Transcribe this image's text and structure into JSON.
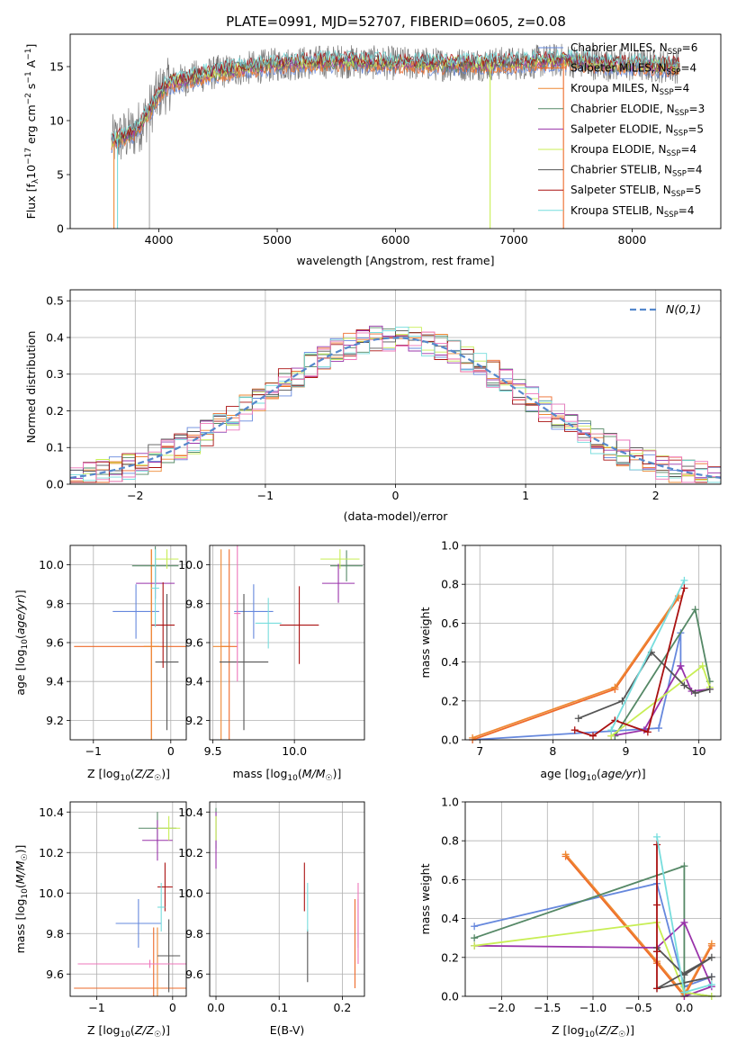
{
  "figure_title": "PLATE=0991, MJD=52707, FIBERID=0605, z=0.08",
  "colors": {
    "chabrier_miles": "#6688dd",
    "salpeter_miles": "#ee6a2a",
    "kroupa_miles": "#ee8833",
    "chabrier_elodie": "#558866",
    "salpeter_elodie": "#9933aa",
    "kroupa_elodie": "#c8ee55",
    "chabrier_stelib": "#555555",
    "salpeter_stelib": "#aa1111",
    "kroupa_stelib": "#77dddd",
    "data_grey": "#777777",
    "normal_dashed": "#5588cc",
    "pink_extra": "#ee77bb"
  },
  "chart_data": [
    {
      "id": "spectrum",
      "type": "line",
      "title": "PLATE=0991, MJD=52707, FIBERID=0605, z=0.08",
      "xlabel": "wavelength [Angstrom, rest frame]",
      "ylabel": "Flux [f_λ10^-17 erg cm^-2 s^-1 A^-1]",
      "xlim": [
        3250,
        8750
      ],
      "ylim": [
        0,
        18
      ],
      "xticks": [
        4000,
        5000,
        6000,
        7000,
        8000
      ],
      "yticks": [
        0,
        5,
        10,
        15
      ],
      "legend_position": "right",
      "legend": [
        {
          "label": "Chabrier MILES, N",
          "sub": "SSP",
          "tail": "=6",
          "color": "#6688dd"
        },
        {
          "label": "Salpeter MILES, N",
          "sub": "SSP",
          "tail": "=4",
          "color": "#ee6a2a"
        },
        {
          "label": "Kroupa MILES, N",
          "sub": "SSP",
          "tail": "=4",
          "color": "#ee8833"
        },
        {
          "label": "Chabrier ELODIE, N",
          "sub": "SSP",
          "tail": "=3",
          "color": "#558866"
        },
        {
          "label": "Salpeter ELODIE, N",
          "sub": "SSP",
          "tail": "=5",
          "color": "#9933aa"
        },
        {
          "label": "Kroupa ELODIE, N",
          "sub": "SSP",
          "tail": "=4",
          "color": "#c8ee55"
        },
        {
          "label": "Chabrier STELIB, N",
          "sub": "SSP",
          "tail": "=4",
          "color": "#555555"
        },
        {
          "label": "Salpeter STELIB, N",
          "sub": "SSP",
          "tail": "=5",
          "color": "#aa1111"
        },
        {
          "label": "Kroupa STELIB, N",
          "sub": "SSP",
          "tail": "=4",
          "color": "#77dddd"
        }
      ],
      "continuum_knots": [
        [
          3600,
          8.0
        ],
        [
          3700,
          8.5
        ],
        [
          3800,
          9.0
        ],
        [
          3900,
          10.5
        ],
        [
          4000,
          12.5
        ],
        [
          4100,
          13.5
        ],
        [
          4300,
          14.0
        ],
        [
          4500,
          14.5
        ],
        [
          5000,
          15.2
        ],
        [
          5500,
          15.5
        ],
        [
          6000,
          15.3
        ],
        [
          6500,
          15.2
        ],
        [
          7000,
          15.3
        ],
        [
          7400,
          15.6
        ],
        [
          7800,
          15.2
        ],
        [
          8400,
          15.0
        ]
      ]
    },
    {
      "id": "residuals",
      "type": "line",
      "xlabel": "(data-model)/error",
      "ylabel": "Normed distribution",
      "xlim": [
        -2.5,
        2.5
      ],
      "ylim": [
        0,
        0.53
      ],
      "xticks": [
        -2,
        -1,
        0,
        1,
        2
      ],
      "yticks": [
        0.0,
        0.1,
        0.2,
        0.3,
        0.4,
        0.5
      ],
      "legend_label": "N(0,1)",
      "legend_position": "upper right",
      "grid": true,
      "normal_mean": 0,
      "normal_sigma": 1
    },
    {
      "id": "age_vs_Z",
      "type": "scatter",
      "xlabel": "Z [log10(Z/Z☉)]",
      "ylabel": "age [log10(age/yr)]",
      "xlim": [
        -1.3,
        0.2
      ],
      "ylim": [
        9.1,
        10.1
      ],
      "xticks": [
        -1,
        0
      ],
      "yticks": [
        9.2,
        9.4,
        9.6,
        9.8,
        10.0
      ],
      "grid": true,
      "points": [
        {
          "x": -0.45,
          "xerr": 0.3,
          "y": 9.76,
          "yerr": 0.14,
          "color": "#6688dd"
        },
        {
          "x": -0.25,
          "xerr": 1.0,
          "y": 9.58,
          "yerr": 0.5,
          "color": "#ee6a2a"
        },
        {
          "x": -0.25,
          "xerr": 0.1,
          "y": 9.58,
          "yerr": 0.5,
          "color": "#ee8833"
        },
        {
          "x": -0.2,
          "xerr": 0.3,
          "y": 9.995,
          "yerr": 0.1,
          "color": "#558866"
        },
        {
          "x": -0.2,
          "xerr": 0.25,
          "y": 9.905,
          "yerr": 0.08,
          "color": "#9933aa"
        },
        {
          "x": -0.05,
          "xerr": 0.15,
          "y": 10.03,
          "yerr": 0.05,
          "color": "#c8ee55"
        },
        {
          "x": -0.05,
          "xerr": 0.15,
          "y": 9.5,
          "yerr": 0.35,
          "color": "#555555"
        },
        {
          "x": -0.1,
          "xerr": 0.15,
          "y": 9.69,
          "yerr": 0.22,
          "color": "#aa1111"
        },
        {
          "x": -0.2,
          "xerr": 0.05,
          "y": 9.88,
          "yerr": 0.2,
          "color": "#77dddd"
        }
      ]
    },
    {
      "id": "age_vs_mass",
      "type": "scatter",
      "xlabel": "mass [log10(M/M☉)]",
      "xlim": [
        9.48,
        10.43
      ],
      "ylim": [
        9.1,
        10.1
      ],
      "xticks": [
        9.5,
        10.0
      ],
      "yticks": [
        9.2,
        9.4,
        9.6,
        9.8,
        10.0
      ],
      "grid": true,
      "points": [
        {
          "x": 9.75,
          "xerr": 0.12,
          "y": 9.76,
          "yerr": 0.14,
          "color": "#6688dd"
        },
        {
          "x": 9.6,
          "xerr": 0.05,
          "y": 9.58,
          "yerr": 0.5,
          "color": "#ee6a2a"
        },
        {
          "x": 9.55,
          "xerr": 0.05,
          "y": 9.58,
          "yerr": 0.5,
          "color": "#ee8833"
        },
        {
          "x": 10.32,
          "xerr": 0.1,
          "y": 9.995,
          "yerr": 0.08,
          "color": "#558866"
        },
        {
          "x": 10.27,
          "xerr": 0.1,
          "y": 9.905,
          "yerr": 0.1,
          "color": "#9933aa"
        },
        {
          "x": 10.28,
          "xerr": 0.12,
          "y": 10.03,
          "yerr": 0.05,
          "color": "#c8ee55"
        },
        {
          "x": 9.69,
          "xerr": 0.15,
          "y": 9.5,
          "yerr": 0.35,
          "color": "#555555"
        },
        {
          "x": 10.03,
          "xerr": 0.12,
          "y": 9.69,
          "yerr": 0.2,
          "color": "#aa1111"
        },
        {
          "x": 9.84,
          "xerr": 0.08,
          "y": 9.7,
          "yerr": 0.13,
          "color": "#77dddd"
        },
        {
          "x": 9.65,
          "xerr": 0.02,
          "y": 9.75,
          "yerr": 0.35,
          "color": "#ee77bb"
        }
      ]
    },
    {
      "id": "weight_vs_age",
      "type": "line",
      "xlabel": "age [log10(age/yr)]",
      "ylabel": "mass weight",
      "xlim": [
        6.8,
        10.3
      ],
      "ylim": [
        0,
        1.0
      ],
      "xticks": [
        7,
        8,
        9,
        10
      ],
      "yticks": [
        0.0,
        0.2,
        0.4,
        0.6,
        0.8,
        1.0
      ],
      "grid": true,
      "series": [
        {
          "color": "#6688dd",
          "x": [
            6.9,
            9.45,
            9.75,
            9.75
          ],
          "y": [
            0.0,
            0.06,
            0.55,
            0.38
          ]
        },
        {
          "color": "#ee6a2a",
          "x": [
            6.9,
            8.85,
            9.72
          ],
          "y": [
            0.0,
            0.26,
            0.73
          ]
        },
        {
          "color": "#ee8833",
          "x": [
            6.9,
            8.85,
            9.72
          ],
          "y": [
            0.01,
            0.27,
            0.74
          ]
        },
        {
          "color": "#558866",
          "x": [
            8.85,
            9.95,
            10.15
          ],
          "y": [
            0.02,
            0.67,
            0.3
          ]
        },
        {
          "color": "#9933aa",
          "x": [
            8.8,
            9.25,
            9.75,
            9.9,
            10.15
          ],
          "y": [
            0.02,
            0.05,
            0.38,
            0.25,
            0.26
          ]
        },
        {
          "color": "#c8ee55",
          "x": [
            8.8,
            10.05,
            10.15
          ],
          "y": [
            0.02,
            0.38,
            0.27
          ]
        },
        {
          "color": "#555555",
          "x": [
            8.35,
            8.95,
            9.35,
            9.8,
            9.95,
            10.15
          ],
          "y": [
            0.11,
            0.2,
            0.45,
            0.28,
            0.24,
            0.26
          ]
        },
        {
          "color": "#aa1111",
          "x": [
            8.3,
            8.55,
            8.85,
            9.3,
            9.8
          ],
          "y": [
            0.05,
            0.02,
            0.1,
            0.04,
            0.78
          ]
        },
        {
          "color": "#77dddd",
          "x": [
            8.8,
            9.8
          ],
          "y": [
            0.05,
            0.82
          ]
        }
      ]
    },
    {
      "id": "mass_vs_Z",
      "type": "scatter",
      "xlabel": "Z [log10(Z/Z☉)]",
      "ylabel": "mass [log10(M/M☉)]",
      "xlim": [
        -1.35,
        0.18
      ],
      "ylim": [
        9.49,
        10.45
      ],
      "xticks": [
        -1,
        0
      ],
      "yticks": [
        9.6,
        9.8,
        10.0,
        10.2,
        10.4
      ],
      "grid": true,
      "points": [
        {
          "x": -0.45,
          "xerr": 0.3,
          "y": 9.85,
          "yerr": 0.12,
          "color": "#6688dd"
        },
        {
          "x": -0.25,
          "xerr": 1.05,
          "y": 9.53,
          "yerr": 0.3,
          "color": "#ee6a2a"
        },
        {
          "x": -0.2,
          "xerr": 0.05,
          "y": 9.53,
          "yerr": 0.3,
          "color": "#ee8833"
        },
        {
          "x": -0.2,
          "xerr": 0.25,
          "y": 10.32,
          "yerr": 0.08,
          "color": "#558866"
        },
        {
          "x": -0.2,
          "xerr": 0.2,
          "y": 10.26,
          "yerr": 0.1,
          "color": "#9933aa"
        },
        {
          "x": -0.05,
          "xerr": 0.15,
          "y": 10.32,
          "yerr": 0.06,
          "color": "#c8ee55"
        },
        {
          "x": -0.05,
          "xerr": 0.15,
          "y": 9.69,
          "yerr": 0.18,
          "color": "#555555"
        },
        {
          "x": -0.1,
          "xerr": 0.1,
          "y": 10.03,
          "yerr": 0.12,
          "color": "#aa1111"
        },
        {
          "x": -0.15,
          "xerr": 0.05,
          "y": 9.93,
          "yerr": 0.12,
          "color": "#77dddd"
        },
        {
          "x": -0.3,
          "xerr": 0.95,
          "y": 9.65,
          "yerr": 0.02,
          "color": "#ee77bb"
        }
      ]
    },
    {
      "id": "mass_vs_ebv",
      "type": "scatter",
      "xlabel": "E(B-V)",
      "xlim": [
        -0.01,
        0.235
      ],
      "ylim": [
        9.49,
        10.45
      ],
      "xticks": [
        0.0,
        0.1,
        0.2
      ],
      "yticks": [
        9.6,
        9.8,
        10.0,
        10.2,
        10.4
      ],
      "grid": true,
      "points": [
        {
          "x": 0.0,
          "y": 10.32,
          "yerr": 0.1,
          "color": "#558866"
        },
        {
          "x": 0.0,
          "y": 10.26,
          "yerr": 0.14,
          "color": "#9933aa"
        },
        {
          "x": 0.0,
          "y": 10.32,
          "yerr": 0.06,
          "color": "#c8ee55"
        },
        {
          "x": 0.145,
          "y": 9.69,
          "yerr": 0.13,
          "color": "#555555"
        },
        {
          "x": 0.14,
          "y": 10.03,
          "yerr": 0.12,
          "color": "#aa1111"
        },
        {
          "x": 0.145,
          "y": 9.93,
          "yerr": 0.12,
          "color": "#77dddd"
        },
        {
          "x": 0.225,
          "y": 9.85,
          "yerr": 0.12,
          "color": "#6688dd"
        },
        {
          "x": 0.22,
          "y": 9.75,
          "yerr": 0.22,
          "color": "#ee6a2a"
        },
        {
          "x": 0.225,
          "y": 9.85,
          "yerr": 0.2,
          "color": "#ee77bb"
        }
      ]
    },
    {
      "id": "weight_vs_Z",
      "type": "line",
      "xlabel": "Z [log10(Z/Z☉)]",
      "ylabel": "mass weight",
      "xlim": [
        -2.4,
        0.4
      ],
      "ylim": [
        0,
        1.0
      ],
      "xticks": [
        -2.0,
        -1.5,
        -1.0,
        -0.5,
        0.0
      ],
      "yticks": [
        0.0,
        0.2,
        0.4,
        0.6,
        0.8,
        1.0
      ],
      "grid": true,
      "series": [
        {
          "color": "#6688dd",
          "x": [
            -2.3,
            -0.3,
            0.0,
            0.3
          ],
          "y": [
            0.36,
            0.58,
            0.05,
            0.1
          ]
        },
        {
          "color": "#ee6a2a",
          "x": [
            -1.3,
            -0.3,
            0.0,
            0.3
          ],
          "y": [
            0.72,
            0.17,
            0.0,
            0.26
          ]
        },
        {
          "color": "#ee8833",
          "x": [
            -1.3,
            -0.3,
            0.0,
            0.3
          ],
          "y": [
            0.73,
            0.18,
            0.01,
            0.27
          ]
        },
        {
          "color": "#558866",
          "x": [
            -2.3,
            0.0,
            0.0,
            0.3
          ],
          "y": [
            0.3,
            0.67,
            0.02,
            0.0
          ]
        },
        {
          "color": "#9933aa",
          "x": [
            -2.3,
            -0.3,
            0.0,
            0.3,
            0.0
          ],
          "y": [
            0.26,
            0.25,
            0.38,
            0.05,
            0.0
          ]
        },
        {
          "color": "#c8ee55",
          "x": [
            -2.3,
            -0.3,
            0.0,
            0.3
          ],
          "y": [
            0.26,
            0.38,
            0.02,
            0.0
          ]
        },
        {
          "color": "#555555",
          "x": [
            -0.3,
            0.0,
            0.3,
            -0.3,
            0.3
          ],
          "y": [
            0.25,
            0.11,
            0.2,
            0.04,
            0.1
          ]
        },
        {
          "color": "#aa1111",
          "x": [
            -0.3,
            -0.3,
            -0.3,
            -0.3
          ],
          "y": [
            0.78,
            0.04,
            0.47,
            0.23
          ]
        },
        {
          "color": "#77dddd",
          "x": [
            -0.3,
            0.0,
            0.3
          ],
          "y": [
            0.82,
            0.02,
            0.06
          ]
        }
      ]
    }
  ]
}
